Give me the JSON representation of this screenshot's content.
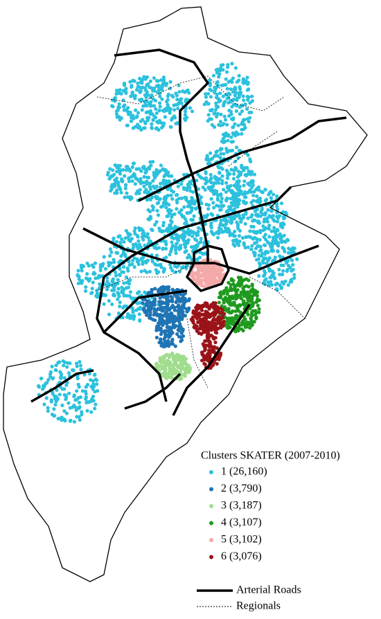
{
  "legend": {
    "title": "Clusters SKATER (2007-2010)",
    "items": [
      {
        "label": "1 (26,160)",
        "color": "#2cc1dd"
      },
      {
        "label": "2 (3,790)",
        "color": "#1f74b4"
      },
      {
        "label": "3 (3,187)",
        "color": "#a0dd8f"
      },
      {
        "label": "4 (3,107)",
        "color": "#1f9a1f"
      },
      {
        "label": "5 (3,102)",
        "color": "#f4a9a9"
      },
      {
        "label": "6 (3,076)",
        "color": "#9a1318"
      }
    ],
    "lines": [
      {
        "label": "Arterial Roads"
      },
      {
        "label": "Regionals"
      }
    ]
  }
}
